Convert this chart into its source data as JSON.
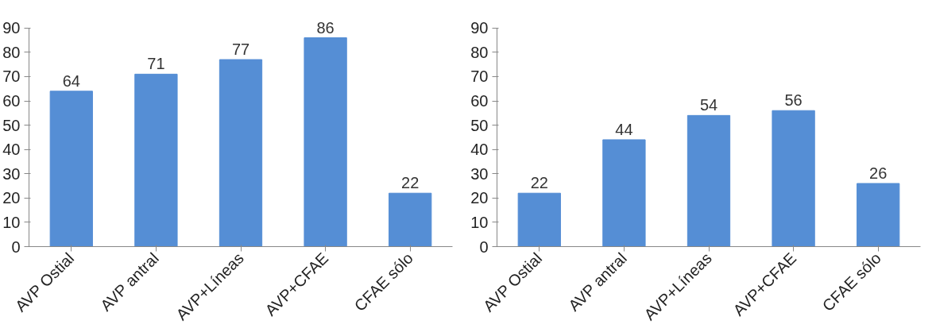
{
  "chart_data": [
    {
      "type": "bar",
      "categories": [
        "AVP Ostial",
        "AVP antral",
        "AVP+Líneas",
        "AVP+CFAE",
        "CFAE sólo"
      ],
      "values": [
        64,
        71,
        77,
        86,
        22
      ],
      "color": "#558ed5",
      "ylim": [
        0,
        90
      ],
      "yticks": [
        0,
        10,
        20,
        30,
        40,
        50,
        60,
        70,
        80,
        90
      ],
      "data_labels": true,
      "grid": false
    },
    {
      "type": "bar",
      "categories": [
        "AVP Ostial",
        "AVP antral",
        "AVP+Líneas",
        "AVP+CFAE",
        "CFAE sólo"
      ],
      "values": [
        22,
        44,
        54,
        56,
        26
      ],
      "color": "#558ed5",
      "ylim": [
        0,
        90
      ],
      "yticks": [
        0,
        10,
        20,
        30,
        40,
        50,
        60,
        70,
        80,
        90
      ],
      "data_labels": true,
      "grid": false
    }
  ]
}
